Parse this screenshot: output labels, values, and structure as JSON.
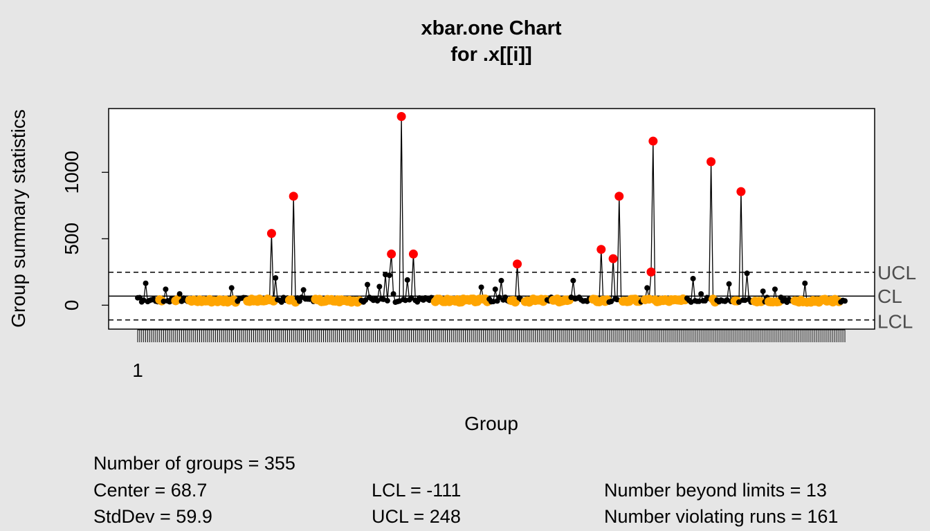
{
  "chart_data": {
    "type": "scatter",
    "title": "xbar.one Chart",
    "subtitle": "for .x[[i]]",
    "xlabel": "Group",
    "ylabel": "Group summary statistics",
    "x_tick_labels": [
      "1"
    ],
    "y_ticks": [
      0,
      500,
      1000
    ],
    "ylim": [
      -180,
      1480
    ],
    "n_groups": 355,
    "center": 68.7,
    "lcl": -111,
    "ucl": 248,
    "limit_labels": [
      "UCL",
      "CL",
      "LCL"
    ],
    "colors": {
      "normal": "#000000",
      "beyond_limits": "#ff0000",
      "violating_runs": "#ffa500",
      "background": "#e6e6e6",
      "plot_bg": "#ffffff"
    },
    "notable_points": [
      {
        "group": 68,
        "value": 540,
        "status": "beyond_limits"
      },
      {
        "group": 79,
        "value": 820,
        "status": "beyond_limits"
      },
      {
        "group": 128,
        "value": 385,
        "status": "beyond_limits"
      },
      {
        "group": 133,
        "value": 1420,
        "status": "beyond_limits"
      },
      {
        "group": 139,
        "value": 385,
        "status": "beyond_limits"
      },
      {
        "group": 191,
        "value": 310,
        "status": "beyond_limits"
      },
      {
        "group": 233,
        "value": 420,
        "status": "beyond_limits"
      },
      {
        "group": 239,
        "value": 350,
        "status": "beyond_limits"
      },
      {
        "group": 242,
        "value": 820,
        "status": "beyond_limits"
      },
      {
        "group": 258,
        "value": 250,
        "status": "beyond_limits"
      },
      {
        "group": 259,
        "value": 1235,
        "status": "beyond_limits"
      },
      {
        "group": 288,
        "value": 1080,
        "status": "beyond_limits"
      },
      {
        "group": 303,
        "value": 855,
        "status": "beyond_limits"
      },
      {
        "group": 5,
        "value": 165,
        "status": "normal"
      },
      {
        "group": 15,
        "value": 120,
        "status": "normal"
      },
      {
        "group": 22,
        "value": 85,
        "status": "normal"
      },
      {
        "group": 48,
        "value": 130,
        "status": "normal"
      },
      {
        "group": 70,
        "value": 205,
        "status": "normal"
      },
      {
        "group": 84,
        "value": 115,
        "status": "normal"
      },
      {
        "group": 116,
        "value": 155,
        "status": "normal"
      },
      {
        "group": 122,
        "value": 140,
        "status": "normal"
      },
      {
        "group": 125,
        "value": 230,
        "status": "normal"
      },
      {
        "group": 127,
        "value": 225,
        "status": "normal"
      },
      {
        "group": 129,
        "value": 85,
        "status": "normal"
      },
      {
        "group": 136,
        "value": 190,
        "status": "normal"
      },
      {
        "group": 173,
        "value": 135,
        "status": "normal"
      },
      {
        "group": 180,
        "value": 120,
        "status": "normal"
      },
      {
        "group": 183,
        "value": 185,
        "status": "normal"
      },
      {
        "group": 219,
        "value": 185,
        "status": "normal"
      },
      {
        "group": 256,
        "value": 130,
        "status": "normal"
      },
      {
        "group": 279,
        "value": 200,
        "status": "normal"
      },
      {
        "group": 283,
        "value": 85,
        "status": "normal"
      },
      {
        "group": 297,
        "value": 160,
        "status": "normal"
      },
      {
        "group": 306,
        "value": 240,
        "status": "normal"
      },
      {
        "group": 314,
        "value": 105,
        "status": "normal"
      },
      {
        "group": 320,
        "value": 120,
        "status": "normal"
      },
      {
        "group": 335,
        "value": 165,
        "status": "normal"
      }
    ]
  },
  "stats": {
    "n_groups": "Number of groups = 355",
    "center": "Center = 68.7",
    "stddev": "StdDev = 59.9",
    "lcl": "LCL = -111",
    "ucl": "UCL = 248",
    "beyond": "Number beyond limits = 13",
    "violating": "Number violating runs = 161"
  }
}
